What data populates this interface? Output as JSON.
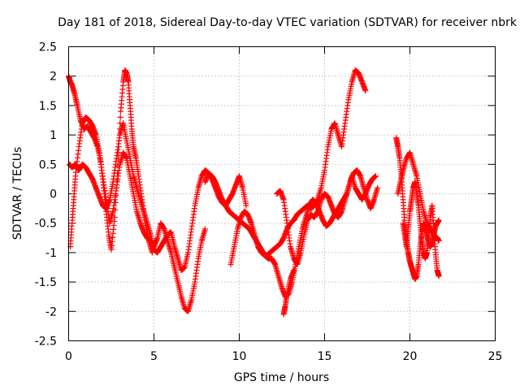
{
  "chart_data": {
    "type": "scatter",
    "title": "Day 181 of 2018, Sidereal Day-to-day VTEC variation (SDTVAR) for receiver nbrk",
    "xlabel": "GPS time / hours",
    "ylabel": "SDTVAR / TECUs",
    "xlim": [
      0,
      25
    ],
    "ylim": [
      -2.5,
      2.5
    ],
    "xticks": [
      "0",
      "5",
      "10",
      "15",
      "20",
      "25"
    ],
    "yticks": [
      "-2.5",
      "-2",
      "-1.5",
      "-1",
      "-0.5",
      "0",
      "0.5",
      "1",
      "1.5",
      "2",
      "2.5"
    ],
    "grid": true,
    "marker": "+",
    "color": "#ff0000",
    "series": [
      {
        "x": [
          0.0,
          0.1,
          0.2,
          0.35,
          0.5,
          0.7,
          0.9,
          1.1,
          1.3,
          1.5,
          1.7,
          1.9,
          2.05,
          2.2,
          2.35,
          2.5,
          2.7,
          2.9,
          3.05,
          3.2,
          3.3,
          3.4,
          3.5,
          3.6,
          3.7,
          3.8,
          3.95,
          4.1,
          4.3,
          4.5,
          4.7,
          4.9
        ],
        "y": [
          2.0,
          1.9,
          1.85,
          1.7,
          1.5,
          1.25,
          1.1,
          1.15,
          1.05,
          0.95,
          0.8,
          0.5,
          0.1,
          -0.3,
          -0.7,
          -0.95,
          -0.4,
          0.6,
          1.4,
          1.9,
          2.1,
          2.05,
          1.9,
          1.5,
          1.1,
          0.8,
          0.6,
          0.3,
          -0.1,
          -0.5,
          -0.8,
          -1.0
        ]
      },
      {
        "x": [
          0.05,
          0.2,
          0.4,
          0.6,
          0.8,
          1.0,
          1.2,
          1.4,
          1.6,
          1.8,
          2.0,
          2.2,
          2.4,
          2.6,
          2.8,
          3.0,
          3.2,
          3.4,
          3.6,
          3.8,
          4.0,
          4.2,
          4.4,
          4.6,
          4.8,
          5.0,
          5.2,
          5.4,
          5.6,
          5.8,
          6.0,
          6.2,
          6.4,
          6.6,
          6.8,
          7.0,
          7.2,
          7.4,
          7.6,
          7.8,
          8.0,
          8.2,
          8.4,
          8.6,
          8.8,
          9.0,
          9.2,
          9.4,
          9.6,
          9.8,
          10.0,
          10.2,
          10.4
        ],
        "y": [
          0.5,
          0.45,
          0.5,
          0.4,
          0.5,
          0.45,
          0.35,
          0.25,
          0.1,
          -0.05,
          -0.2,
          -0.25,
          -0.1,
          0.2,
          0.6,
          1.0,
          1.2,
          0.9,
          0.6,
          0.3,
          0.1,
          -0.1,
          -0.3,
          -0.5,
          -0.7,
          -0.95,
          -1.0,
          -0.9,
          -0.8,
          -0.7,
          -0.65,
          -0.9,
          -1.1,
          -1.3,
          -1.25,
          -1.0,
          -0.6,
          -0.2,
          0.1,
          0.3,
          0.4,
          0.35,
          0.25,
          0.1,
          -0.05,
          -0.15,
          -0.2,
          -0.1,
          0.0,
          0.15,
          0.3,
          0.1,
          -0.2
        ]
      },
      {
        "x": [
          0.1,
          0.2,
          0.3,
          0.4,
          0.6,
          0.8,
          1.0,
          1.2,
          1.4,
          1.6,
          1.8,
          2.0,
          2.2,
          2.4,
          2.6,
          2.8,
          3.0,
          3.2,
          3.4,
          3.6,
          3.8,
          4.0,
          4.2,
          4.4,
          4.6,
          4.8,
          5.0,
          5.2,
          5.4,
          5.6,
          5.8,
          6.0,
          6.2,
          6.4,
          6.6,
          6.8,
          7.0,
          7.2,
          7.4,
          7.6,
          7.8,
          8.0
        ],
        "y": [
          -0.9,
          -0.5,
          -0.1,
          0.3,
          0.8,
          1.2,
          1.3,
          1.25,
          1.15,
          1.0,
          0.7,
          0.3,
          -0.1,
          -0.5,
          -0.3,
          0.1,
          0.5,
          0.7,
          0.6,
          0.3,
          0.0,
          -0.3,
          -0.5,
          -0.65,
          -0.75,
          -0.8,
          -0.9,
          -0.75,
          -0.5,
          -0.6,
          -0.8,
          -1.0,
          -1.25,
          -1.5,
          -1.75,
          -1.95,
          -2.0,
          -1.8,
          -1.5,
          -1.1,
          -0.8,
          -0.6
        ]
      },
      {
        "x": [
          8.0,
          8.2,
          8.4,
          8.6,
          8.8,
          9.0,
          9.2,
          9.4,
          9.6,
          9.8,
          10.0,
          10.2,
          10.4,
          10.6,
          10.8,
          11.0,
          11.2,
          11.4,
          11.6,
          11.8,
          12.0,
          12.2,
          12.4,
          12.6,
          12.8,
          13.0,
          13.2,
          13.4,
          13.6,
          13.8,
          14.0,
          14.2,
          14.4,
          14.6,
          14.8,
          15.0,
          15.2,
          15.4,
          15.6,
          15.8,
          16.0,
          16.2,
          16.4,
          16.6,
          16.8,
          17.0,
          17.2,
          17.4
        ],
        "y": [
          0.2,
          0.35,
          0.3,
          0.2,
          0.05,
          -0.1,
          -0.2,
          -0.3,
          -0.35,
          -0.4,
          -0.45,
          -0.5,
          -0.55,
          -0.6,
          -0.7,
          -0.8,
          -0.9,
          -1.0,
          -1.05,
          -1.0,
          -0.95,
          -0.9,
          -0.85,
          -0.75,
          -0.6,
          -0.5,
          -0.45,
          -0.35,
          -0.3,
          -0.25,
          -0.2,
          -0.25,
          -0.2,
          -0.1,
          0.1,
          0.4,
          0.8,
          1.1,
          1.2,
          1.0,
          0.8,
          1.2,
          1.6,
          1.9,
          2.1,
          2.05,
          1.9,
          1.75
        ]
      },
      {
        "x": [
          9.5,
          9.7,
          9.9,
          10.1,
          10.3,
          10.5,
          10.7,
          10.9,
          11.1,
          11.3,
          11.5,
          11.7,
          11.9,
          12.1,
          12.3,
          12.5,
          12.7,
          12.9,
          13.1,
          13.3,
          13.5,
          13.7,
          13.9,
          14.1,
          14.3,
          14.5,
          14.7,
          14.9,
          15.1,
          15.3,
          15.5,
          15.7,
          15.9,
          16.1,
          16.3,
          16.5,
          16.7,
          16.9,
          17.1,
          17.3,
          17.5,
          17.7,
          17.9,
          18.1
        ],
        "y": [
          -1.2,
          -0.9,
          -0.6,
          -0.4,
          -0.3,
          -0.35,
          -0.5,
          -0.7,
          -0.9,
          -1.0,
          -1.05,
          -1.1,
          -1.1,
          -1.2,
          -1.4,
          -1.6,
          -1.75,
          -1.7,
          -1.5,
          -1.2,
          -0.9,
          -0.6,
          -0.4,
          -0.2,
          -0.1,
          -0.15,
          -0.3,
          -0.45,
          -0.55,
          -0.5,
          -0.4,
          -0.3,
          -0.2,
          -0.1,
          0.0,
          0.2,
          0.35,
          0.4,
          0.3,
          0.1,
          -0.1,
          -0.25,
          -0.1,
          0.1
        ]
      },
      {
        "x": [
          12.2,
          12.4,
          12.6,
          12.8,
          13.0,
          13.2,
          13.4,
          13.6,
          13.8,
          14.0,
          14.2,
          14.4,
          14.6,
          14.8,
          15.0,
          15.2,
          15.4,
          15.6,
          15.8,
          16.0,
          16.2,
          16.4,
          16.6,
          16.8,
          17.0,
          17.2,
          17.4,
          17.6,
          17.8,
          18.0
        ],
        "y": [
          0.0,
          0.05,
          -0.1,
          -0.5,
          -0.9,
          -1.1,
          -1.2,
          -1.0,
          -0.7,
          -0.45,
          -0.35,
          -0.4,
          -0.3,
          -0.1,
          0.0,
          -0.05,
          -0.2,
          -0.35,
          -0.4,
          -0.3,
          -0.1,
          0.1,
          0.3,
          0.1,
          0.0,
          -0.1,
          0.0,
          0.15,
          0.25,
          0.3
        ]
      },
      {
        "x": [
          12.6,
          12.7,
          12.8,
          13.0,
          13.2
        ],
        "y": [
          -2.05,
          -1.9,
          -1.7,
          -1.45,
          -1.3
        ]
      },
      {
        "x": [
          19.2,
          19.3,
          19.4,
          19.5,
          19.6,
          19.7,
          19.8,
          19.9,
          20.0,
          20.1,
          20.2,
          20.3,
          20.4,
          20.5,
          20.6,
          20.7,
          20.8,
          20.9,
          21.0,
          21.1,
          21.2,
          21.3,
          21.4,
          21.5,
          21.6,
          21.7
        ],
        "y": [
          0.95,
          0.8,
          0.6,
          0.3,
          -0.1,
          -0.5,
          -0.8,
          -1.0,
          -1.15,
          -1.25,
          -1.35,
          -1.45,
          -1.4,
          -1.2,
          -0.9,
          -0.65,
          -0.5,
          -0.55,
          -0.7,
          -0.85,
          -0.9,
          -0.85,
          -0.7,
          -0.55,
          -0.5,
          -0.45
        ]
      },
      {
        "x": [
          19.3,
          19.45,
          19.6,
          19.8,
          20.0,
          20.2,
          20.4,
          20.6,
          20.8,
          21.0,
          21.2,
          21.4,
          21.6,
          21.7
        ],
        "y": [
          0.0,
          0.2,
          0.4,
          0.6,
          0.7,
          0.5,
          0.3,
          0.0,
          -0.3,
          -0.5,
          -0.6,
          -0.7,
          -0.75,
          -0.8
        ]
      },
      {
        "x": [
          19.6,
          19.7,
          19.8,
          19.9,
          20.0,
          20.1,
          20.2,
          20.3,
          20.4,
          20.5,
          20.6,
          20.7,
          20.8,
          20.9,
          21.0,
          21.1,
          21.2,
          21.3,
          21.4,
          21.5,
          21.6,
          21.7
        ],
        "y": [
          -0.5,
          -0.7,
          -0.9,
          -0.6,
          -0.3,
          -0.1,
          0.1,
          0.2,
          0.0,
          -0.2,
          -0.5,
          -0.8,
          -1.0,
          -1.1,
          -1.0,
          -0.7,
          -0.4,
          -0.2,
          -0.6,
          -1.0,
          -1.3,
          -1.4
        ]
      }
    ]
  }
}
